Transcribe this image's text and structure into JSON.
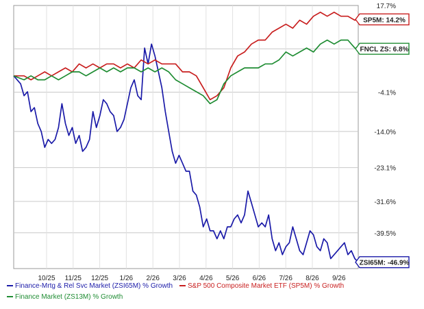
{
  "chart_data": {
    "type": "line",
    "x_ticks": [
      "10/25",
      "11/25",
      "12/25",
      "1/26",
      "2/26",
      "3/26",
      "4/26",
      "5/26",
      "6/26",
      "7/26",
      "8/26",
      "9/26"
    ],
    "y_ticks": [
      "17.7%",
      "6.8%",
      "-4.1%",
      "-14.0%",
      "-23.1%",
      "-31.6%",
      "-39.5%",
      "-46.9%"
    ],
    "y_tick_values": [
      17.7,
      6.8,
      -4.1,
      -14.0,
      -23.1,
      -31.6,
      -39.5,
      -46.9
    ],
    "ylim": [
      -48.5,
      17.7
    ],
    "grid": true,
    "legend_position": "bottom",
    "series": [
      {
        "name": "Finance-Mrtg & Rel Svc Market (ZSI65M) % Growth",
        "tag": "ZSI65M: -46.9%",
        "color": "#1a1aa8",
        "values": [
          [
            0,
            0
          ],
          [
            2,
            -2
          ],
          [
            3,
            -5
          ],
          [
            4,
            -4
          ],
          [
            5,
            -9
          ],
          [
            6,
            -8
          ],
          [
            7,
            -12
          ],
          [
            8,
            -14
          ],
          [
            9,
            -18
          ],
          [
            10,
            -16
          ],
          [
            11,
            -17
          ],
          [
            12,
            -16
          ],
          [
            13,
            -13
          ],
          [
            14,
            -7
          ],
          [
            15,
            -12
          ],
          [
            16,
            -15
          ],
          [
            17,
            -13
          ],
          [
            18,
            -17
          ],
          [
            19,
            -15
          ],
          [
            20,
            -19
          ],
          [
            21,
            -18
          ],
          [
            22,
            -16
          ],
          [
            23,
            -9
          ],
          [
            24,
            -13
          ],
          [
            25,
            -10
          ],
          [
            26,
            -6
          ],
          [
            27,
            -7
          ],
          [
            28,
            -9
          ],
          [
            29,
            -10
          ],
          [
            30,
            -14
          ],
          [
            31,
            -13
          ],
          [
            32,
            -11
          ],
          [
            33,
            -7
          ],
          [
            34,
            -3
          ],
          [
            35,
            -1
          ],
          [
            36,
            -5
          ],
          [
            37,
            -6
          ],
          [
            38,
            7
          ],
          [
            39,
            3
          ],
          [
            40,
            8
          ],
          [
            41,
            5
          ],
          [
            42,
            1
          ],
          [
            43,
            -3
          ],
          [
            44,
            -9
          ],
          [
            45,
            -14
          ],
          [
            46,
            -19
          ],
          [
            47,
            -22
          ],
          [
            48,
            -20
          ],
          [
            49,
            -22
          ],
          [
            50,
            -24
          ],
          [
            51,
            -24
          ],
          [
            52,
            -29
          ],
          [
            53,
            -30
          ],
          [
            54,
            -33
          ],
          [
            55,
            -38
          ],
          [
            56,
            -36
          ],
          [
            57,
            -39
          ],
          [
            58,
            -39
          ],
          [
            59,
            -41
          ],
          [
            60,
            -39
          ],
          [
            61,
            -41
          ],
          [
            62,
            -38
          ],
          [
            63,
            -38
          ],
          [
            64,
            -36
          ],
          [
            65,
            -35
          ],
          [
            66,
            -37
          ],
          [
            67,
            -35
          ],
          [
            68,
            -29
          ],
          [
            69,
            -32
          ],
          [
            70,
            -35
          ],
          [
            71,
            -38
          ],
          [
            72,
            -37
          ],
          [
            73,
            -38
          ],
          [
            74,
            -35
          ],
          [
            75,
            -41
          ],
          [
            76,
            -44
          ],
          [
            77,
            -42
          ],
          [
            78,
            -45
          ],
          [
            79,
            -43
          ],
          [
            80,
            -42
          ],
          [
            81,
            -38
          ],
          [
            82,
            -41
          ],
          [
            83,
            -44
          ],
          [
            84,
            -45
          ],
          [
            85,
            -42
          ],
          [
            86,
            -39
          ],
          [
            87,
            -40
          ],
          [
            88,
            -43
          ],
          [
            89,
            -44
          ],
          [
            90,
            -41
          ],
          [
            91,
            -42
          ],
          [
            92,
            -46
          ],
          [
            93,
            -45
          ],
          [
            94,
            -44
          ],
          [
            95,
            -43
          ],
          [
            96,
            -42
          ],
          [
            97,
            -45
          ],
          [
            98,
            -44
          ],
          [
            99,
            -46
          ],
          [
            100,
            -46.9
          ]
        ]
      },
      {
        "name": "S&P 500 Composite Market ETF (SP5M) % Growth",
        "tag": "SP5M: 14.2%",
        "color": "#c81e1e",
        "values": [
          [
            0,
            0
          ],
          [
            3,
            0
          ],
          [
            5,
            -1
          ],
          [
            7,
            0
          ],
          [
            9,
            1
          ],
          [
            11,
            0
          ],
          [
            13,
            1
          ],
          [
            15,
            2
          ],
          [
            17,
            1
          ],
          [
            19,
            3
          ],
          [
            21,
            2
          ],
          [
            23,
            3
          ],
          [
            25,
            2
          ],
          [
            27,
            3
          ],
          [
            29,
            3
          ],
          [
            31,
            2
          ],
          [
            33,
            3
          ],
          [
            35,
            2
          ],
          [
            37,
            4
          ],
          [
            39,
            3
          ],
          [
            41,
            4
          ],
          [
            43,
            3
          ],
          [
            45,
            3
          ],
          [
            47,
            3
          ],
          [
            49,
            1
          ],
          [
            51,
            1
          ],
          [
            53,
            0
          ],
          [
            55,
            -3
          ],
          [
            57,
            -6
          ],
          [
            59,
            -5
          ],
          [
            61,
            -3
          ],
          [
            63,
            2
          ],
          [
            65,
            5
          ],
          [
            67,
            6
          ],
          [
            69,
            8
          ],
          [
            71,
            9
          ],
          [
            73,
            9
          ],
          [
            75,
            11
          ],
          [
            77,
            12
          ],
          [
            79,
            13
          ],
          [
            81,
            12
          ],
          [
            83,
            14
          ],
          [
            85,
            13
          ],
          [
            87,
            15
          ],
          [
            89,
            16
          ],
          [
            91,
            15
          ],
          [
            93,
            16
          ],
          [
            95,
            15
          ],
          [
            97,
            15
          ],
          [
            99,
            14
          ],
          [
            100,
            14.2
          ]
        ]
      },
      {
        "name": "Finance Market (ZS13M) % Growth",
        "tag": "FNCL ZS: 6.8%",
        "color": "#1e8c32",
        "values": [
          [
            0,
            0
          ],
          [
            3,
            -1
          ],
          [
            5,
            0
          ],
          [
            7,
            -1
          ],
          [
            9,
            -1
          ],
          [
            11,
            0
          ],
          [
            13,
            -1
          ],
          [
            15,
            0
          ],
          [
            17,
            1
          ],
          [
            19,
            1
          ],
          [
            21,
            0
          ],
          [
            23,
            1
          ],
          [
            25,
            2
          ],
          [
            27,
            1
          ],
          [
            29,
            2
          ],
          [
            31,
            1
          ],
          [
            33,
            2
          ],
          [
            35,
            2
          ],
          [
            37,
            1
          ],
          [
            39,
            2
          ],
          [
            41,
            1
          ],
          [
            43,
            2
          ],
          [
            45,
            1
          ],
          [
            47,
            -1
          ],
          [
            49,
            -2
          ],
          [
            51,
            -3
          ],
          [
            53,
            -4
          ],
          [
            55,
            -5
          ],
          [
            57,
            -7
          ],
          [
            59,
            -6
          ],
          [
            61,
            -2
          ],
          [
            63,
            0
          ],
          [
            65,
            1
          ],
          [
            67,
            2
          ],
          [
            69,
            2
          ],
          [
            71,
            2
          ],
          [
            73,
            3
          ],
          [
            75,
            3
          ],
          [
            77,
            4
          ],
          [
            79,
            6
          ],
          [
            81,
            5
          ],
          [
            83,
            6
          ],
          [
            85,
            7
          ],
          [
            87,
            6
          ],
          [
            89,
            8
          ],
          [
            91,
            9
          ],
          [
            93,
            8
          ],
          [
            95,
            9
          ],
          [
            97,
            9
          ],
          [
            99,
            7
          ],
          [
            100,
            6.8
          ]
        ]
      }
    ]
  }
}
